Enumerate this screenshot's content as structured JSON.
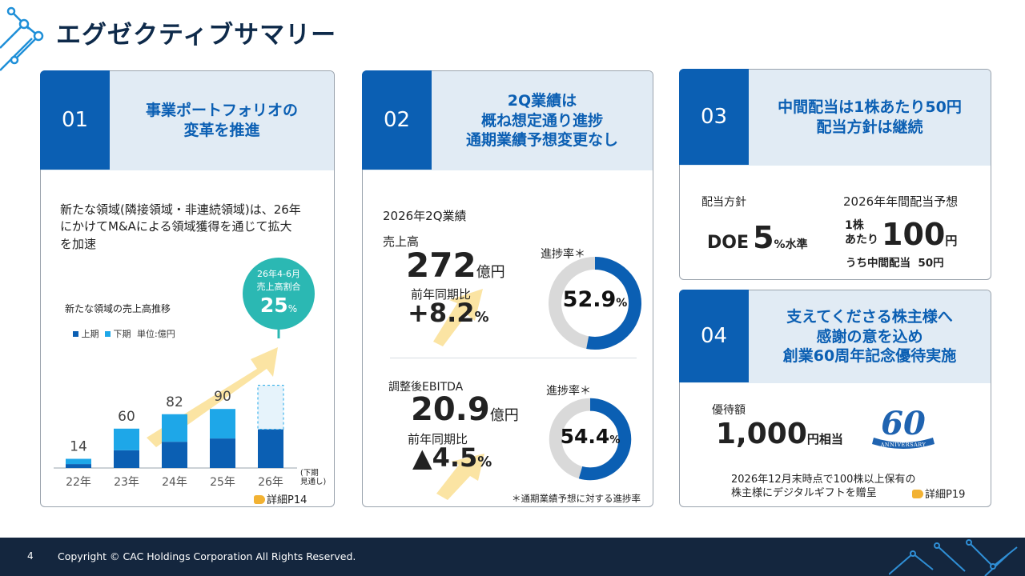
{
  "page": {
    "title": "エグゼクティブサマリー"
  },
  "card1": {
    "number": "01",
    "heading": "事業ポートフォリオの\n変革を推進",
    "body": "新たな領域(隣接領域・非連続領域)は、26年\nにかけてM&Aによる領域獲得を通じて拡大\nを加速",
    "badge": {
      "line1": "26年4-6月",
      "line2": "売上高割合",
      "value": "25",
      "unit": "%"
    },
    "detail": "詳細P14",
    "chart_data": {
      "type": "bar",
      "title": "新たな領域の売上高推移",
      "legend": [
        "上期",
        "下期"
      ],
      "unit_label": "単位:億円",
      "categories": [
        "22年",
        "23年",
        "24年",
        "25年",
        "26年"
      ],
      "total_labels": [
        "14",
        "60",
        "82",
        "90",
        ""
      ],
      "series": [
        {
          "name": "上期",
          "values": [
            6,
            27,
            40,
            45,
            59
          ],
          "color": "#0b5fb3"
        },
        {
          "name": "下期",
          "values": [
            8,
            33,
            42,
            45,
            0
          ],
          "color": "#1ea7e8"
        }
      ],
      "forecast": {
        "category": "26年",
        "total": 126,
        "label": "(下期\n見通し)"
      },
      "ylim": [
        0,
        135
      ]
    }
  },
  "card2": {
    "number": "02",
    "heading": "2Q業績は\n概ね想定通り進捗\n通期業績予想変更なし",
    "period": "2026年2Q業績",
    "sales": {
      "label": "売上高",
      "value": "272",
      "unit": "億円",
      "yoy_label": "前年同期比",
      "yoy_value": "+8.2",
      "yoy_unit": "%",
      "progress_label": "進捗率",
      "progress_value": "52.9",
      "progress_unit": "%",
      "progress": 52.9
    },
    "ebitda": {
      "label": "調整後EBITDA",
      "value": "20.9",
      "unit": "億円",
      "yoy_label": "前年同期比",
      "yoy_value": "▲4.5",
      "yoy_unit": "%",
      "progress_label": "進捗率",
      "progress_value": "54.4",
      "progress_unit": "%",
      "progress": 54.4
    },
    "asterisk": "＊",
    "note": "＊通期業績予想に対する進捗率"
  },
  "card3": {
    "number": "03",
    "heading": "中間配当は1株あたり50円\n配当方針は継続",
    "policy_label": "配当方針",
    "doe_prefix": "DOE",
    "doe_value": "5",
    "doe_suffix": "%水準",
    "forecast_label": "2026年年間配当予想",
    "per_share_1": "1株",
    "per_share_2": "あたり",
    "annual_value": "100",
    "annual_unit": "円",
    "interim": "うち中間配当  50円"
  },
  "card4": {
    "number": "04",
    "heading": "支えてくださる株主様へ\n感謝の意を込め\n創業60周年記念優待実施",
    "benefit_label": "優待額",
    "benefit_value": "1,000",
    "benefit_unit": "円相当",
    "condition_1": "2026年12月末時点で100株以上保有の",
    "condition_2": "株主様にデジタルギフトを贈呈",
    "detail": "詳細P19",
    "logo_number": "60",
    "logo_ribbon": "ANNIVERSARY"
  },
  "footer": {
    "page_number": "4",
    "copyright": "Copyright © CAC Holdings Corporation All Rights Reserved."
  },
  "colors": {
    "accent": "#0b5fb3",
    "light_blue": "#1ea7e8",
    "teal": "#2bb8b3",
    "head_bg": "#e1ebf4",
    "footer": "#14263e",
    "arrow": "#fbe4a3"
  }
}
